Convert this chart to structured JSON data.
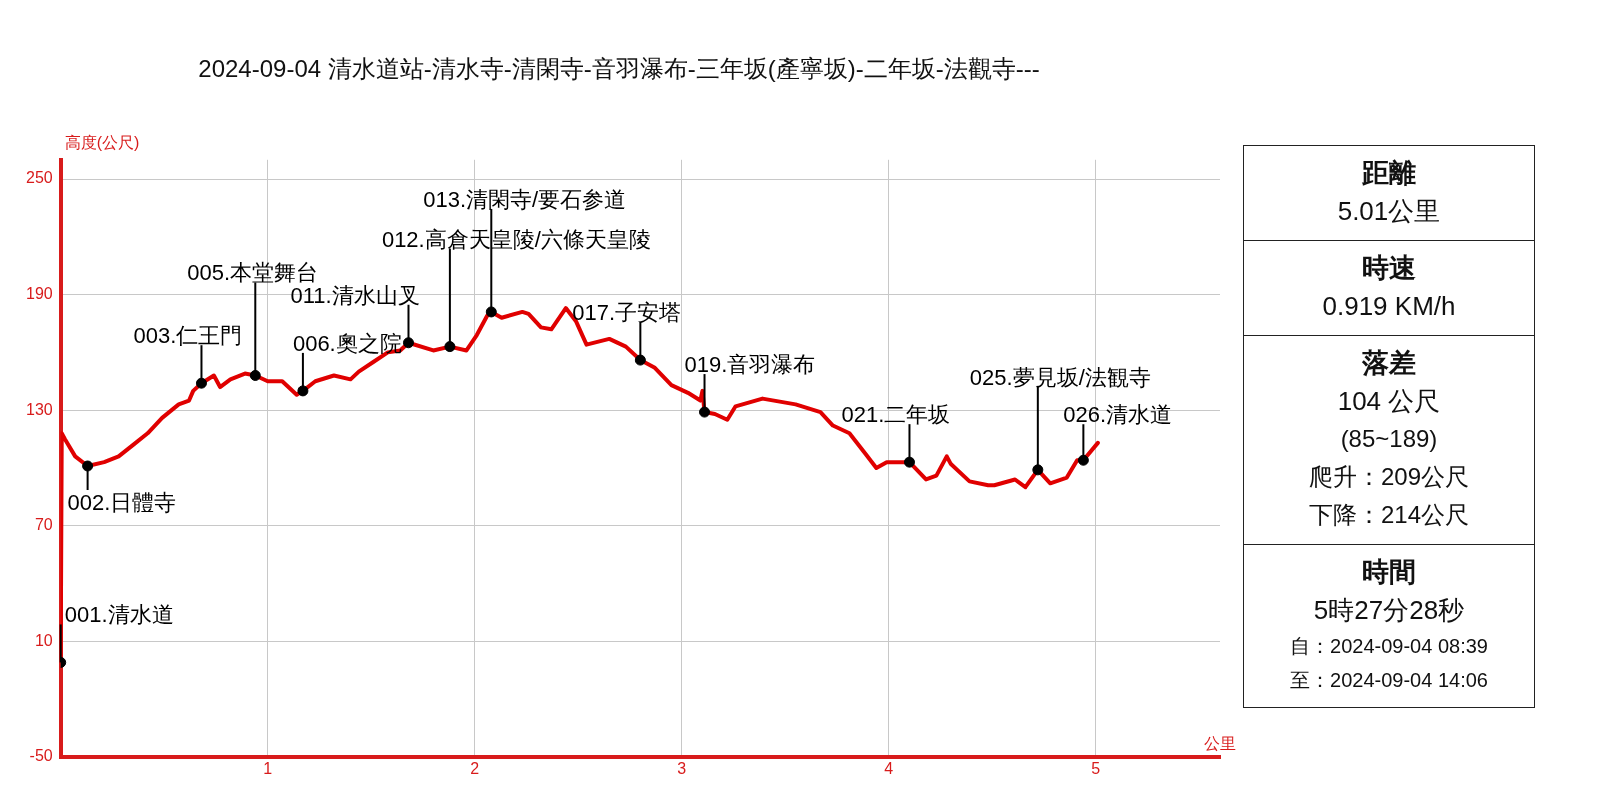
{
  "chart_data": {
    "type": "line",
    "title": "2024-09-04 清水道站-清水寺-清閑寺-音羽瀑布-三年坂(產寧坂)-二年坂-法觀寺---",
    "xlabel": "公里",
    "ylabel": "高度(公尺)",
    "xlim": [
      0,
      5.6
    ],
    "xticks": [
      1,
      2,
      3,
      4,
      5
    ],
    "ylim": [
      -50,
      260
    ],
    "yticks": [
      -50,
      10,
      70,
      130,
      190,
      250
    ],
    "grid": true,
    "legend": false,
    "series": [
      {
        "type": "line",
        "color": "#e00000",
        "marker": "none",
        "x": [
          0,
          0.005,
          0.02,
          0.07,
          0.13,
          0.21,
          0.28,
          0.35,
          0.42,
          0.49,
          0.57,
          0.62,
          0.64,
          0.68,
          0.74,
          0.77,
          0.82,
          0.89,
          0.94,
          1.0,
          1.07,
          1.14,
          1.17,
          1.23,
          1.32,
          1.4,
          1.44,
          1.51,
          1.58,
          1.64,
          1.68,
          1.8,
          1.88,
          1.96,
          2.01,
          2.06,
          2.08,
          2.13,
          2.23,
          2.26,
          2.32,
          2.37,
          2.44,
          2.49,
          2.54,
          2.65,
          2.73,
          2.8,
          2.87,
          2.95,
          3.03,
          3.09,
          3.1,
          3.11,
          3.16,
          3.22,
          3.26,
          3.39,
          3.55,
          3.67,
          3.73,
          3.81,
          3.89,
          3.94,
          3.99,
          4.1,
          4.18,
          4.23,
          4.28,
          4.3,
          4.39,
          4.48,
          4.51,
          4.61,
          4.66,
          4.72,
          4.78,
          4.86,
          4.91,
          4.94,
          5.01
        ],
        "values": [
          -1,
          118,
          115,
          106,
          101,
          103,
          106,
          112,
          118,
          126,
          133,
          135,
          140,
          144,
          148,
          142,
          146,
          149,
          148,
          145,
          145,
          138,
          140,
          145,
          148,
          146,
          150,
          155,
          160,
          161,
          165,
          161,
          163,
          161,
          169,
          179,
          181,
          178,
          181,
          180,
          173,
          172,
          183,
          176,
          164,
          167,
          163,
          156,
          152,
          143,
          139,
          135,
          140,
          129,
          128,
          125,
          132,
          136,
          133,
          129,
          122,
          118,
          107,
          100,
          103,
          103,
          94,
          96,
          106,
          102,
          93,
          91,
          91,
          94,
          90,
          99,
          92,
          95,
          104,
          104,
          113
        ]
      },
      {
        "type": "scatter",
        "color": "#000000",
        "marker": "circle",
        "x": [
          0,
          0.13,
          0.68,
          0.94,
          1.17,
          1.68,
          1.88,
          2.08,
          2.8,
          3.11,
          4.1,
          4.72,
          4.94
        ],
        "values": [
          -1,
          101,
          144,
          148,
          140,
          165,
          163,
          181,
          156,
          129,
          103,
          99,
          104
        ]
      }
    ],
    "annotations": [
      {
        "text": "001.清水道",
        "x": 0,
        "y": -1
      },
      {
        "text": "002.日體寺",
        "x": 0.13,
        "y": 101
      },
      {
        "text": "003.仁王門",
        "x": 0.68,
        "y": 144
      },
      {
        "text": "005.本堂舞台",
        "x": 0.94,
        "y": 148
      },
      {
        "text": "006.奧之院",
        "x": 1.17,
        "y": 140
      },
      {
        "text": "011.清水山叉",
        "x": 1.68,
        "y": 165
      },
      {
        "text": "012.高倉天皇陵/六條天皇陵",
        "x": 1.88,
        "y": 163
      },
      {
        "text": "013.清閑寺/要石参道",
        "x": 2.08,
        "y": 181
      },
      {
        "text": "017.子安塔",
        "x": 2.8,
        "y": 156
      },
      {
        "text": "019.音羽瀑布",
        "x": 3.11,
        "y": 129
      },
      {
        "text": "021.二年坂",
        "x": 4.1,
        "y": 103
      },
      {
        "text": "025.夢見坂/法観寺",
        "x": 4.72,
        "y": 99
      },
      {
        "text": "026.清水道",
        "x": 4.94,
        "y": 104
      },
      "距離",
      "5.01公里",
      "時速",
      "0.919 KM/h",
      "落差",
      "104 公尺",
      "(85~189)",
      "爬升：209公尺",
      "下降：214公尺",
      "時間",
      "5時27分28秒",
      "自：2024-09-04 08:39",
      "至：2024-09-04 14:06"
    ]
  }
}
